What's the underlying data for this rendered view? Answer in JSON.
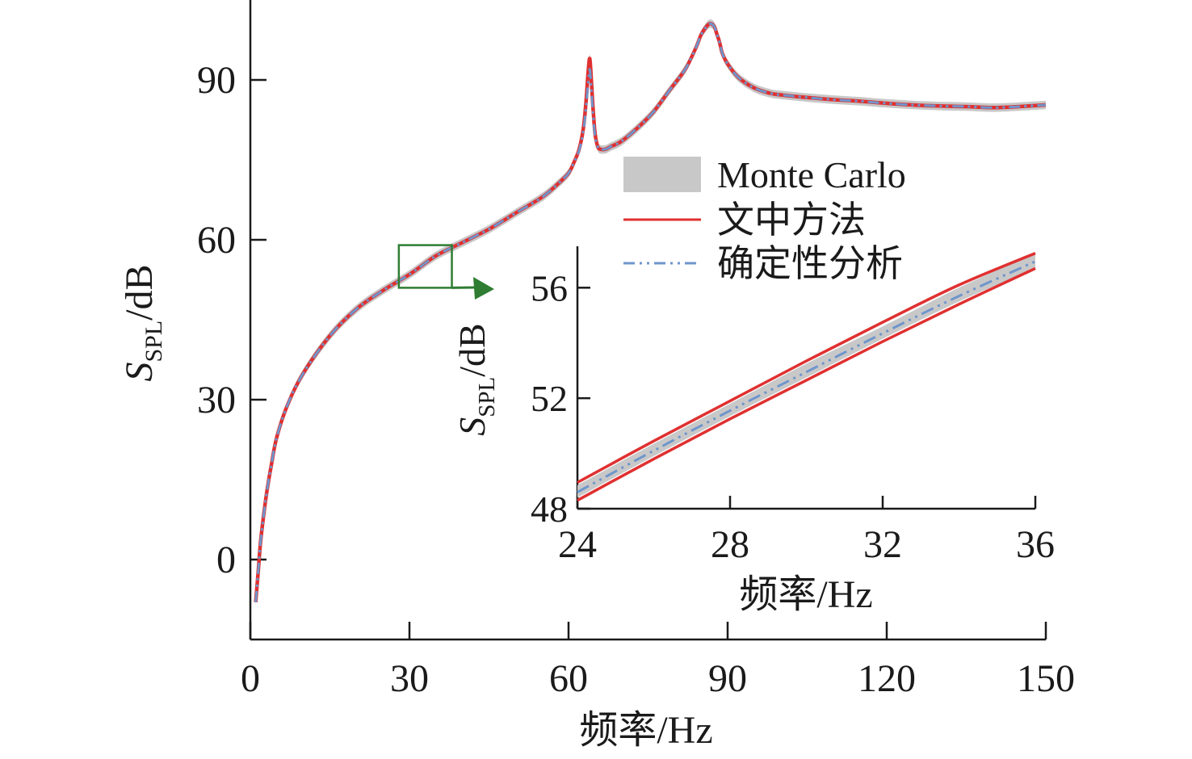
{
  "colors": {
    "band": "#c8c8c8",
    "method": "#e03030",
    "deterministic": "#6f95cc",
    "zoom_box": "#2e7d32",
    "axis": "#1a1a1a"
  },
  "legend": [
    {
      "key": "monte_carlo",
      "label": "Monte Carlo",
      "style": "band"
    },
    {
      "key": "method",
      "label": "文中方法",
      "style": "solid"
    },
    {
      "key": "deterministic",
      "label": "确定性分析",
      "style": "dash-dot-dot"
    }
  ],
  "chart_data": [
    {
      "type": "line",
      "role": "main",
      "xlabel": "频率/Hz",
      "ylabel": {
        "main": "S",
        "sub": "SPL",
        "unit": "/dB"
      },
      "xlim": [
        0,
        150
      ],
      "ylim": [
        -15,
        105
      ],
      "xticks": [
        0,
        30,
        60,
        90,
        120,
        150
      ],
      "yticks": [
        0,
        30,
        60,
        90
      ],
      "grid": false,
      "legend_position": "center-right",
      "x": [
        1,
        1.5,
        2,
        3,
        4,
        5,
        7,
        10,
        15,
        20,
        25,
        30,
        35,
        40,
        45,
        50,
        55,
        58,
        60,
        61,
        62,
        62.8,
        63.3,
        63.7,
        64,
        64.3,
        64.6,
        65,
        65.5,
        66,
        67,
        68,
        70,
        73,
        76,
        79,
        82,
        84,
        85,
        86,
        86.5,
        87,
        87.5,
        88,
        88.5,
        89,
        90,
        92,
        95,
        98,
        100,
        105,
        110,
        115,
        120,
        125,
        130,
        135,
        140,
        145,
        150
      ],
      "series": [
        {
          "name": "Monte Carlo",
          "band_width": 0.8,
          "values": [
            -8,
            -2,
            4,
            12,
            18,
            23,
            29,
            35,
            42,
            47,
            50.5,
            53.5,
            57,
            59.5,
            62,
            65,
            68,
            70.5,
            72.5,
            74.5,
            77,
            81,
            86,
            91.5,
            94,
            90,
            85,
            80,
            77.5,
            77,
            77,
            77.5,
            78.5,
            81,
            84,
            88,
            92,
            96,
            98.5,
            100,
            100.5,
            100.5,
            100,
            98.5,
            97,
            95,
            93,
            90.5,
            88.5,
            87.5,
            87.2,
            86.7,
            86.3,
            86,
            85.6,
            85.3,
            85.1,
            85,
            84.8,
            85,
            85.3
          ]
        },
        {
          "name": "文中方法",
          "values": [
            -8,
            -2,
            4,
            12,
            18,
            23,
            29,
            35,
            42,
            47,
            50.5,
            53.5,
            57,
            59.5,
            62,
            65,
            68,
            70.5,
            72.5,
            74.5,
            77,
            81,
            86,
            91.5,
            94,
            90,
            85,
            80,
            77.5,
            77,
            77,
            77.5,
            78.5,
            81,
            84,
            88,
            92,
            96,
            98.5,
            100,
            100.5,
            100.5,
            100,
            98.5,
            97,
            95,
            93,
            90.5,
            88.5,
            87.5,
            87.2,
            86.7,
            86.3,
            86,
            85.6,
            85.3,
            85.1,
            85,
            84.8,
            85,
            85.3
          ]
        },
        {
          "name": "确定性分析",
          "values": [
            -8,
            -2,
            4,
            12,
            18,
            23,
            29,
            35,
            42,
            47,
            50.5,
            53.5,
            57,
            59.5,
            62,
            65,
            68,
            70.5,
            72.5,
            74.5,
            76.8,
            80.5,
            85,
            89.5,
            92,
            88.5,
            84,
            79.5,
            77.5,
            77,
            77,
            77.5,
            78.5,
            81,
            84,
            88,
            92,
            96,
            98.5,
            100,
            100.5,
            100.5,
            100,
            98.5,
            97,
            95,
            93,
            90.5,
            88.5,
            87.5,
            87.2,
            86.7,
            86.3,
            86,
            85.6,
            85.3,
            85.1,
            85,
            84.8,
            85,
            85.3
          ]
        }
      ],
      "zoom_box": {
        "x": [
          28,
          38
        ],
        "y": [
          51,
          59
        ]
      }
    },
    {
      "type": "line",
      "role": "inset",
      "xlabel": "频率/Hz",
      "ylabel": {
        "main": "S",
        "sub": "SPL",
        "unit": "/dB"
      },
      "xlim": [
        24,
        36
      ],
      "ylim": [
        48,
        57.5
      ],
      "xticks": [
        24,
        28,
        32,
        36
      ],
      "yticks": [
        48,
        52,
        56
      ],
      "grid": false,
      "x": [
        24,
        26,
        28,
        30,
        32,
        34,
        36
      ],
      "series": [
        {
          "name": "Monte Carlo",
          "lower": [
            48.4,
            49.9,
            51.35,
            52.75,
            54.15,
            55.5,
            56.7
          ],
          "upper": [
            48.85,
            50.35,
            51.8,
            53.25,
            54.6,
            56.0,
            57.25
          ]
        },
        {
          "name": "文中方法",
          "lower": [
            48.3,
            49.8,
            51.25,
            52.65,
            54.05,
            55.4,
            56.7
          ],
          "upper": [
            48.95,
            50.45,
            51.9,
            53.35,
            54.75,
            56.1,
            57.25
          ]
        },
        {
          "name": "确定性分析",
          "values": [
            48.6,
            50.1,
            51.55,
            52.95,
            54.35,
            55.7,
            56.95
          ]
        }
      ]
    }
  ]
}
